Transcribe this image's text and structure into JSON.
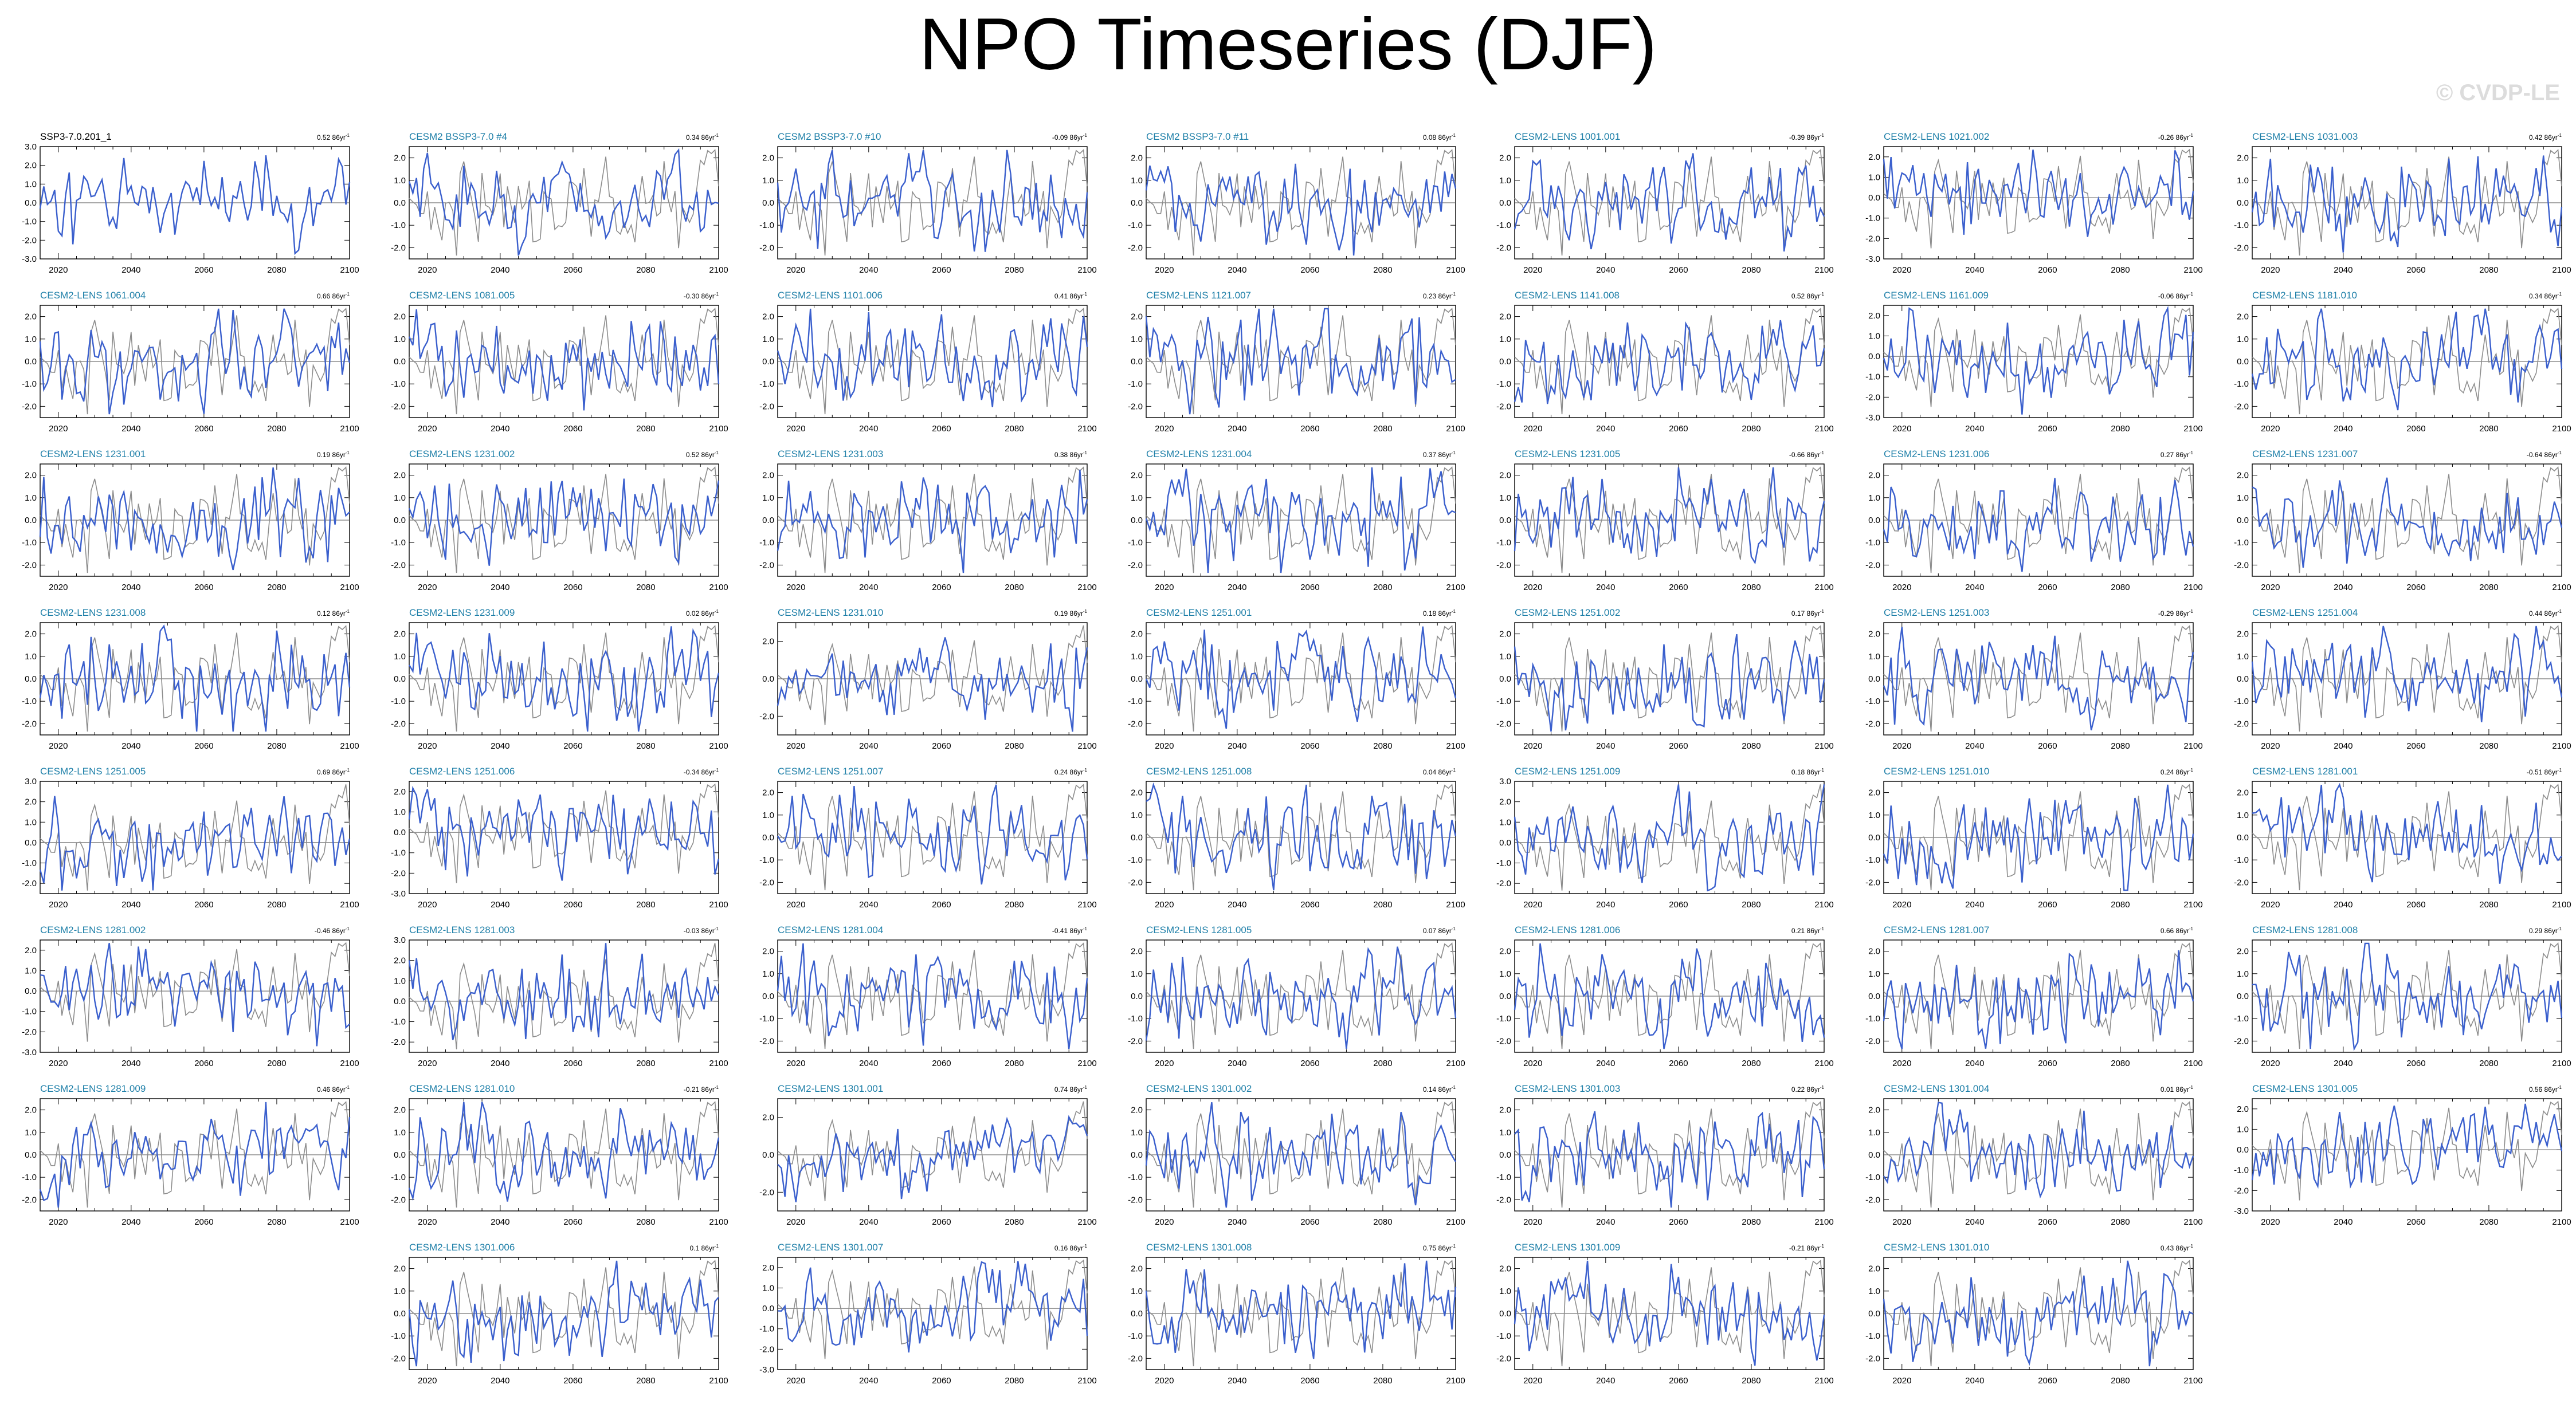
{
  "title": "NPO Timeseries (DJF)",
  "watermark": "© CVDP-LE",
  "colors": {
    "member": "#3a5fcd",
    "reference": "#8c8c8c",
    "label_member": "#1e7fa8",
    "label_reference": "#000000",
    "zero_line": "#555555"
  },
  "chart_data": {
    "type": "line",
    "x_range": [
      2015,
      2100
    ],
    "x_ticks": [
      2020,
      2040,
      2060,
      2080,
      2100
    ],
    "trend_unit": "86yr",
    "panels": [
      {
        "label": "SSP3-7.0.201_1",
        "trend": "0.52",
        "yticks": [
          "3.0",
          "2.0",
          "1.0",
          "0.0",
          "-1.0",
          "-2.0",
          "-3.0"
        ],
        "ylim": [
          -3,
          3
        ],
        "reference": true
      },
      {
        "label": "CESM2 BSSP3-7.0 #4",
        "trend": "0.34",
        "yticks": [
          "2.0",
          "1.0",
          "0.0",
          "-1.0",
          "-2.0"
        ],
        "ylim": [
          -2.5,
          2.5
        ]
      },
      {
        "label": "CESM2 BSSP3-7.0 #10",
        "trend": "-0.09",
        "yticks": [
          "2.0",
          "1.0",
          "0.0",
          "-1.0",
          "-2.0"
        ],
        "ylim": [
          -2.5,
          2.5
        ]
      },
      {
        "label": "CESM2 BSSP3-7.0 #11",
        "trend": "0.08",
        "yticks": [
          "2.0",
          "1.0",
          "0.0",
          "-1.0",
          "-2.0"
        ],
        "ylim": [
          -2.5,
          2.5
        ]
      },
      {
        "label": "CESM2-LENS 1001.001",
        "trend": "-0.39",
        "yticks": [
          "2.0",
          "1.0",
          "0.0",
          "-1.0",
          "-2.0"
        ],
        "ylim": [
          -2.5,
          2.5
        ]
      },
      {
        "label": "CESM2-LENS 1021.002",
        "trend": "-0.26",
        "yticks": [
          "2.0",
          "1.0",
          "0.0",
          "-1.0",
          "-2.0",
          "-3.0"
        ],
        "ylim": [
          -3,
          2.5
        ]
      },
      {
        "label": "CESM2-LENS 1031.003",
        "trend": "0.42",
        "yticks": [
          "2.0",
          "1.0",
          "0.0",
          "-1.0",
          "-2.0"
        ],
        "ylim": [
          -2.5,
          2.5
        ]
      },
      {
        "label": "CESM2-LENS 1061.004",
        "trend": "0.66",
        "yticks": [
          "2.0",
          "1.0",
          "0.0",
          "-1.0",
          "-2.0"
        ],
        "ylim": [
          -2.5,
          2.5
        ]
      },
      {
        "label": "CESM2-LENS 1081.005",
        "trend": "-0.30",
        "yticks": [
          "2.0",
          "1.0",
          "0.0",
          "-1.0",
          "-2.0"
        ],
        "ylim": [
          -2.5,
          2.5
        ]
      },
      {
        "label": "CESM2-LENS 1101.006",
        "trend": "0.41",
        "yticks": [
          "2.0",
          "1.0",
          "0.0",
          "-1.0",
          "-2.0"
        ],
        "ylim": [
          -2.5,
          2.5
        ]
      },
      {
        "label": "CESM2-LENS 1121.007",
        "trend": "0.23",
        "yticks": [
          "2.0",
          "1.0",
          "0.0",
          "-1.0",
          "-2.0"
        ],
        "ylim": [
          -2.5,
          2.5
        ]
      },
      {
        "label": "CESM2-LENS 1141.008",
        "trend": "0.52",
        "yticks": [
          "2.0",
          "1.0",
          "0.0",
          "-1.0",
          "-2.0"
        ],
        "ylim": [
          -2.5,
          2.5
        ]
      },
      {
        "label": "CESM2-LENS 1161.009",
        "trend": "-0.06",
        "yticks": [
          "2.0",
          "1.0",
          "0.0",
          "-1.0",
          "-2.0",
          "-3.0"
        ],
        "ylim": [
          -3,
          2.5
        ]
      },
      {
        "label": "CESM2-LENS 1181.010",
        "trend": "0.34",
        "yticks": [
          "2.0",
          "1.0",
          "0.0",
          "-1.0",
          "-2.0"
        ],
        "ylim": [
          -2.5,
          2.5
        ]
      },
      {
        "label": "CESM2-LENS 1231.001",
        "trend": "0.19",
        "yticks": [
          "2.0",
          "1.0",
          "0.0",
          "-1.0",
          "-2.0"
        ],
        "ylim": [
          -2.5,
          2.5
        ]
      },
      {
        "label": "CESM2-LENS 1231.002",
        "trend": "0.52",
        "yticks": [
          "2.0",
          "1.0",
          "0.0",
          "-1.0",
          "-2.0"
        ],
        "ylim": [
          -2.5,
          2.5
        ]
      },
      {
        "label": "CESM2-LENS 1231.003",
        "trend": "0.38",
        "yticks": [
          "2.0",
          "1.0",
          "0.0",
          "-1.0",
          "-2.0"
        ],
        "ylim": [
          -2.5,
          2.5
        ]
      },
      {
        "label": "CESM2-LENS 1231.004",
        "trend": "0.37",
        "yticks": [
          "2.0",
          "1.0",
          "0.0",
          "-1.0",
          "-2.0"
        ],
        "ylim": [
          -2.5,
          2.5
        ]
      },
      {
        "label": "CESM2-LENS 1231.005",
        "trend": "-0.66",
        "yticks": [
          "2.0",
          "1.0",
          "0.0",
          "-1.0",
          "-2.0"
        ],
        "ylim": [
          -2.5,
          2.5
        ]
      },
      {
        "label": "CESM2-LENS 1231.006",
        "trend": "0.27",
        "yticks": [
          "2.0",
          "1.0",
          "0.0",
          "-1.0",
          "-2.0"
        ],
        "ylim": [
          -2.5,
          2.5
        ]
      },
      {
        "label": "CESM2-LENS 1231.007",
        "trend": "-0.64",
        "yticks": [
          "2.0",
          "1.0",
          "0.0",
          "-1.0",
          "-2.0"
        ],
        "ylim": [
          -2.5,
          2.5
        ]
      },
      {
        "label": "CESM2-LENS 1231.008",
        "trend": "0.12",
        "yticks": [
          "2.0",
          "1.0",
          "0.0",
          "-1.0",
          "-2.0"
        ],
        "ylim": [
          -2.5,
          2.5
        ]
      },
      {
        "label": "CESM2-LENS 1231.009",
        "trend": "0.02",
        "yticks": [
          "2.0",
          "1.0",
          "0.0",
          "-1.0",
          "-2.0"
        ],
        "ylim": [
          -2.5,
          2.5
        ]
      },
      {
        "label": "CESM2-LENS 1231.010",
        "trend": "0.19",
        "yticks": [
          "2.0",
          "0.0",
          "-2.0"
        ],
        "ylim": [
          -3,
          3
        ]
      },
      {
        "label": "CESM2-LENS 1251.001",
        "trend": "0.18",
        "yticks": [
          "2.0",
          "1.0",
          "0.0",
          "-1.0",
          "-2.0"
        ],
        "ylim": [
          -2.5,
          2.5
        ]
      },
      {
        "label": "CESM2-LENS 1251.002",
        "trend": "0.17",
        "yticks": [
          "2.0",
          "1.0",
          "0.0",
          "-1.0",
          "-2.0"
        ],
        "ylim": [
          -2.5,
          2.5
        ]
      },
      {
        "label": "CESM2-LENS 1251.003",
        "trend": "-0.29",
        "yticks": [
          "2.0",
          "1.0",
          "0.0",
          "-1.0",
          "-2.0"
        ],
        "ylim": [
          -2.5,
          2.5
        ]
      },
      {
        "label": "CESM2-LENS 1251.004",
        "trend": "0.44",
        "yticks": [
          "2.0",
          "1.0",
          "0.0",
          "-1.0",
          "-2.0"
        ],
        "ylim": [
          -2.5,
          2.5
        ]
      },
      {
        "label": "CESM2-LENS 1251.005",
        "trend": "0.69",
        "yticks": [
          "3.0",
          "2.0",
          "1.0",
          "0.0",
          "-1.0",
          "-2.0"
        ],
        "ylim": [
          -2.5,
          3
        ]
      },
      {
        "label": "CESM2-LENS 1251.006",
        "trend": "-0.34",
        "yticks": [
          "2.0",
          "1.0",
          "0.0",
          "-1.0",
          "-2.0",
          "-3.0"
        ],
        "ylim": [
          -3,
          2.5
        ]
      },
      {
        "label": "CESM2-LENS 1251.007",
        "trend": "0.24",
        "yticks": [
          "2.0",
          "1.0",
          "0.0",
          "-1.0",
          "-2.0"
        ],
        "ylim": [
          -2.5,
          2.5
        ]
      },
      {
        "label": "CESM2-LENS 1251.008",
        "trend": "0.04",
        "yticks": [
          "2.0",
          "1.0",
          "0.0",
          "-1.0",
          "-2.0"
        ],
        "ylim": [
          -2.5,
          2.5
        ]
      },
      {
        "label": "CESM2-LENS 1251.009",
        "trend": "0.18",
        "yticks": [
          "3.0",
          "2.0",
          "1.0",
          "0.0",
          "-1.0",
          "-2.0"
        ],
        "ylim": [
          -2.5,
          3
        ]
      },
      {
        "label": "CESM2-LENS 1251.010",
        "trend": "0.24",
        "yticks": [
          "2.0",
          "1.0",
          "0.0",
          "-1.0",
          "-2.0"
        ],
        "ylim": [
          -2.5,
          2.5
        ]
      },
      {
        "label": "CESM2-LENS 1281.001",
        "trend": "-0.51",
        "yticks": [
          "2.0",
          "1.0",
          "0.0",
          "-1.0",
          "-2.0"
        ],
        "ylim": [
          -2.5,
          2.5
        ]
      },
      {
        "label": "CESM2-LENS 1281.002",
        "trend": "-0.46",
        "yticks": [
          "2.0",
          "1.0",
          "0.0",
          "-1.0",
          "-2.0",
          "-3.0"
        ],
        "ylim": [
          -3,
          2.5
        ]
      },
      {
        "label": "CESM2-LENS 1281.003",
        "trend": "-0.03",
        "yticks": [
          "3.0",
          "2.0",
          "1.0",
          "0.0",
          "-1.0",
          "-2.0"
        ],
        "ylim": [
          -2.5,
          3
        ]
      },
      {
        "label": "CESM2-LENS 1281.004",
        "trend": "-0.41",
        "yticks": [
          "2.0",
          "1.0",
          "0.0",
          "-1.0",
          "-2.0"
        ],
        "ylim": [
          -2.5,
          2.5
        ]
      },
      {
        "label": "CESM2-LENS 1281.005",
        "trend": "0.07",
        "yticks": [
          "2.0",
          "1.0",
          "0.0",
          "-1.0",
          "-2.0"
        ],
        "ylim": [
          -2.5,
          2.5
        ]
      },
      {
        "label": "CESM2-LENS 1281.006",
        "trend": "0.21",
        "yticks": [
          "2.0",
          "1.0",
          "0.0",
          "-1.0",
          "-2.0"
        ],
        "ylim": [
          -2.5,
          2.5
        ]
      },
      {
        "label": "CESM2-LENS 1281.007",
        "trend": "0.66",
        "yticks": [
          "2.0",
          "1.0",
          "0.0",
          "-1.0",
          "-2.0"
        ],
        "ylim": [
          -2.5,
          2.5
        ]
      },
      {
        "label": "CESM2-LENS 1281.008",
        "trend": "0.29",
        "yticks": [
          "2.0",
          "1.0",
          "0.0",
          "-1.0",
          "-2.0"
        ],
        "ylim": [
          -2.5,
          2.5
        ]
      },
      {
        "label": "CESM2-LENS 1281.009",
        "trend": "0.46",
        "yticks": [
          "2.0",
          "1.0",
          "0.0",
          "-1.0",
          "-2.0"
        ],
        "ylim": [
          -2.5,
          2.5
        ]
      },
      {
        "label": "CESM2-LENS 1281.010",
        "trend": "-0.21",
        "yticks": [
          "2.0",
          "1.0",
          "0.0",
          "-1.0",
          "-2.0"
        ],
        "ylim": [
          -2.5,
          2.5
        ]
      },
      {
        "label": "CESM2-LENS 1301.001",
        "trend": "0.74",
        "yticks": [
          "2.0",
          "0.0",
          "-2.0"
        ],
        "ylim": [
          -3,
          3
        ]
      },
      {
        "label": "CESM2-LENS 1301.002",
        "trend": "0.14",
        "yticks": [
          "2.0",
          "1.0",
          "0.0",
          "-1.0",
          "-2.0"
        ],
        "ylim": [
          -2.5,
          2.5
        ]
      },
      {
        "label": "CESM2-LENS 1301.003",
        "trend": "0.22",
        "yticks": [
          "2.0",
          "1.0",
          "0.0",
          "-1.0",
          "-2.0"
        ],
        "ylim": [
          -2.5,
          2.5
        ]
      },
      {
        "label": "CESM2-LENS 1301.004",
        "trend": "0.01",
        "yticks": [
          "2.0",
          "1.0",
          "0.0",
          "-1.0",
          "-2.0"
        ],
        "ylim": [
          -2.5,
          2.5
        ]
      },
      {
        "label": "CESM2-LENS 1301.005",
        "trend": "0.56",
        "yticks": [
          "2.0",
          "1.0",
          "0.0",
          "-1.0",
          "-2.0",
          "-3.0"
        ],
        "ylim": [
          -3,
          2.5
        ]
      },
      {
        "label": "CESM2-LENS 1301.006",
        "trend": "0.1",
        "yticks": [
          "2.0",
          "1.0",
          "0.0",
          "-1.0",
          "-2.0"
        ],
        "ylim": [
          -2.5,
          2.5
        ]
      },
      {
        "label": "CESM2-LENS 1301.007",
        "trend": "0.16",
        "yticks": [
          "2.0",
          "1.0",
          "0.0",
          "-1.0",
          "-2.0",
          "-3.0"
        ],
        "ylim": [
          -3,
          2.5
        ]
      },
      {
        "label": "CESM2-LENS 1301.008",
        "trend": "0.75",
        "yticks": [
          "2.0",
          "1.0",
          "0.0",
          "-1.0",
          "-2.0"
        ],
        "ylim": [
          -2.5,
          2.5
        ]
      },
      {
        "label": "CESM2-LENS 1301.009",
        "trend": "-0.21",
        "yticks": [
          "2.0",
          "1.0",
          "0.0",
          "-1.0",
          "-2.0"
        ],
        "ylim": [
          -2.5,
          2.5
        ]
      },
      {
        "label": "CESM2-LENS 1301.010",
        "trend": "0.43",
        "yticks": [
          "2.0",
          "1.0",
          "0.0",
          "-1.0",
          "-2.0"
        ],
        "ylim": [
          -2.5,
          2.5
        ]
      }
    ]
  }
}
